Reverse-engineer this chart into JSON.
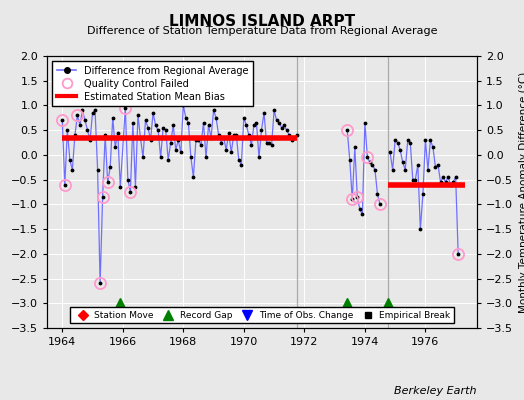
{
  "title": "LIMNOS ISLAND ARPT",
  "subtitle": "Difference of Station Temperature Data from Regional Average",
  "ylabel": "Monthly Temperature Anomaly Difference (°C)",
  "xlabel_credit": "Berkeley Earth",
  "ylim": [
    -3.5,
    2.0
  ],
  "xlim": [
    1963.5,
    1977.7
  ],
  "xticks": [
    1964,
    1966,
    1968,
    1970,
    1972,
    1974,
    1976
  ],
  "yticks": [
    -3.5,
    -3.0,
    -2.5,
    -2.0,
    -1.5,
    -1.0,
    -0.5,
    0.0,
    0.5,
    1.0,
    1.5,
    2.0
  ],
  "bg_color": "#e8e8e8",
  "plot_bg_color": "#e8e8e8",
  "line_color": "#7070ff",
  "segment1_bias": 0.35,
  "segment2_bias": -0.6,
  "segment1_xrange": [
    1964.0,
    1971.75
  ],
  "segment2_xrange": [
    1974.75,
    1977.3
  ],
  "vertical_lines": [
    1971.75,
    1974.75
  ],
  "record_gaps": [
    1965.9,
    1973.42,
    1974.75
  ],
  "main_data": [
    [
      1964.0,
      0.7
    ],
    [
      1964.083,
      -0.6
    ],
    [
      1964.167,
      0.5
    ],
    [
      1964.25,
      -0.1
    ],
    [
      1964.333,
      -0.3
    ],
    [
      1964.417,
      0.4
    ],
    [
      1964.5,
      0.8
    ],
    [
      1964.583,
      0.6
    ],
    [
      1964.667,
      0.9
    ],
    [
      1964.75,
      0.7
    ],
    [
      1964.833,
      0.5
    ],
    [
      1964.917,
      0.3
    ],
    [
      1965.0,
      0.85
    ],
    [
      1965.083,
      0.9
    ],
    [
      1965.167,
      -0.3
    ],
    [
      1965.25,
      -2.6
    ],
    [
      1965.333,
      -0.85
    ],
    [
      1965.417,
      0.4
    ],
    [
      1965.5,
      -0.55
    ],
    [
      1965.583,
      -0.25
    ],
    [
      1965.667,
      0.75
    ],
    [
      1965.75,
      0.15
    ],
    [
      1965.833,
      0.45
    ],
    [
      1965.917,
      -0.65
    ],
    [
      1966.083,
      0.95
    ],
    [
      1966.167,
      -0.5
    ],
    [
      1966.25,
      -0.75
    ],
    [
      1966.333,
      0.65
    ],
    [
      1966.417,
      -0.65
    ],
    [
      1966.5,
      0.8
    ],
    [
      1966.583,
      0.35
    ],
    [
      1966.667,
      -0.05
    ],
    [
      1966.75,
      0.7
    ],
    [
      1966.833,
      0.55
    ],
    [
      1966.917,
      0.3
    ],
    [
      1967.0,
      0.85
    ],
    [
      1967.083,
      0.6
    ],
    [
      1967.167,
      0.5
    ],
    [
      1967.25,
      -0.05
    ],
    [
      1967.333,
      0.55
    ],
    [
      1967.417,
      0.5
    ],
    [
      1967.5,
      -0.1
    ],
    [
      1967.583,
      0.25
    ],
    [
      1967.667,
      0.6
    ],
    [
      1967.75,
      0.1
    ],
    [
      1967.833,
      0.3
    ],
    [
      1967.917,
      0.05
    ],
    [
      1968.0,
      1.0
    ],
    [
      1968.083,
      0.75
    ],
    [
      1968.167,
      0.65
    ],
    [
      1968.25,
      -0.05
    ],
    [
      1968.333,
      -0.45
    ],
    [
      1968.417,
      0.3
    ],
    [
      1968.5,
      0.3
    ],
    [
      1968.583,
      0.2
    ],
    [
      1968.667,
      0.65
    ],
    [
      1968.75,
      -0.05
    ],
    [
      1968.833,
      0.6
    ],
    [
      1968.917,
      0.35
    ],
    [
      1969.0,
      0.9
    ],
    [
      1969.083,
      0.75
    ],
    [
      1969.167,
      0.4
    ],
    [
      1969.25,
      0.25
    ],
    [
      1969.333,
      0.35
    ],
    [
      1969.417,
      0.1
    ],
    [
      1969.5,
      0.45
    ],
    [
      1969.583,
      0.05
    ],
    [
      1969.667,
      0.4
    ],
    [
      1969.75,
      0.4
    ],
    [
      1969.833,
      -0.1
    ],
    [
      1969.917,
      -0.2
    ],
    [
      1970.0,
      0.75
    ],
    [
      1970.083,
      0.6
    ],
    [
      1970.167,
      0.4
    ],
    [
      1970.25,
      0.2
    ],
    [
      1970.333,
      0.6
    ],
    [
      1970.417,
      0.65
    ],
    [
      1970.5,
      -0.05
    ],
    [
      1970.583,
      0.5
    ],
    [
      1970.667,
      0.85
    ],
    [
      1970.75,
      0.25
    ],
    [
      1970.833,
      0.25
    ],
    [
      1970.917,
      0.2
    ],
    [
      1971.0,
      0.9
    ],
    [
      1971.083,
      0.7
    ],
    [
      1971.167,
      0.65
    ],
    [
      1971.25,
      0.55
    ],
    [
      1971.333,
      0.6
    ],
    [
      1971.417,
      0.5
    ],
    [
      1971.5,
      0.4
    ],
    [
      1971.583,
      0.3
    ],
    [
      1971.667,
      0.35
    ],
    [
      1971.75,
      0.4
    ],
    [
      1973.417,
      0.5
    ],
    [
      1973.5,
      -0.1
    ],
    [
      1973.583,
      -0.9
    ],
    [
      1973.667,
      0.15
    ],
    [
      1973.75,
      -0.85
    ],
    [
      1973.833,
      -1.1
    ],
    [
      1973.917,
      -1.2
    ],
    [
      1974.0,
      0.65
    ],
    [
      1974.083,
      -0.05
    ],
    [
      1974.167,
      -0.15
    ],
    [
      1974.25,
      -0.2
    ],
    [
      1974.333,
      -0.3
    ],
    [
      1974.417,
      -0.8
    ],
    [
      1974.5,
      -1.0
    ],
    [
      1974.833,
      0.05
    ],
    [
      1974.917,
      -0.3
    ],
    [
      1975.0,
      0.3
    ],
    [
      1975.083,
      0.25
    ],
    [
      1975.167,
      0.1
    ],
    [
      1975.25,
      -0.15
    ],
    [
      1975.333,
      -0.3
    ],
    [
      1975.417,
      0.3
    ],
    [
      1975.5,
      0.25
    ],
    [
      1975.583,
      -0.5
    ],
    [
      1975.667,
      -0.5
    ],
    [
      1975.75,
      -0.2
    ],
    [
      1975.833,
      -1.5
    ],
    [
      1975.917,
      -0.8
    ],
    [
      1976.0,
      0.3
    ],
    [
      1976.083,
      -0.3
    ],
    [
      1976.167,
      0.3
    ],
    [
      1976.25,
      0.15
    ],
    [
      1976.333,
      -0.25
    ],
    [
      1976.417,
      -0.2
    ],
    [
      1976.5,
      -0.55
    ],
    [
      1976.583,
      -0.45
    ],
    [
      1976.667,
      -0.55
    ],
    [
      1976.75,
      -0.45
    ],
    [
      1976.833,
      -0.6
    ],
    [
      1976.917,
      -0.55
    ],
    [
      1977.0,
      -0.45
    ],
    [
      1977.083,
      -2.0
    ]
  ],
  "qc_failed": [
    [
      1964.0,
      0.7
    ],
    [
      1964.083,
      -0.6
    ],
    [
      1964.5,
      0.8
    ],
    [
      1965.25,
      -2.6
    ],
    [
      1965.333,
      -0.85
    ],
    [
      1965.5,
      -0.55
    ],
    [
      1966.083,
      0.95
    ],
    [
      1966.25,
      -0.75
    ],
    [
      1973.417,
      0.5
    ],
    [
      1973.583,
      -0.9
    ],
    [
      1973.75,
      -0.85
    ],
    [
      1974.083,
      -0.05
    ],
    [
      1974.5,
      -1.0
    ],
    [
      1977.083,
      -2.0
    ]
  ]
}
